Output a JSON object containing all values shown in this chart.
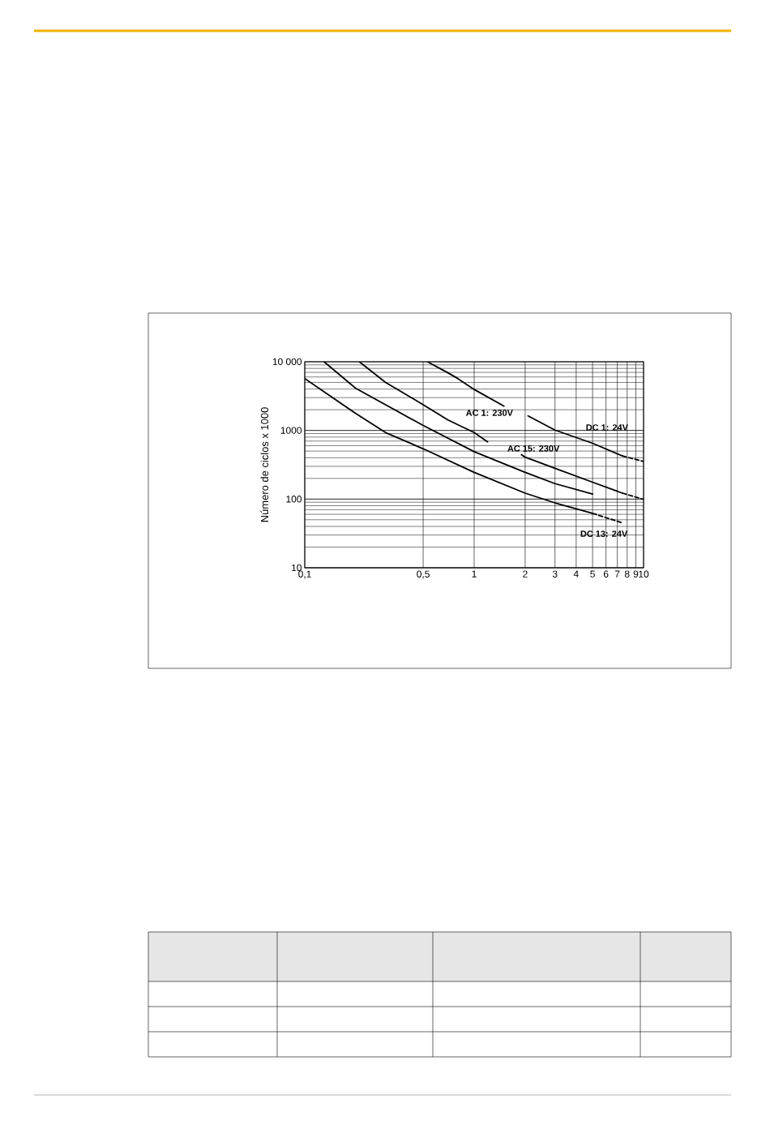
{
  "chart_data": {
    "type": "line",
    "ylabel": "Número de ciclos x 1000",
    "log": "xy",
    "grid": true,
    "marker": "none",
    "xlim": [
      0.1,
      10
    ],
    "ylim": [
      10,
      10000
    ],
    "xticks": [
      {
        "value": 0.1,
        "label": "0,1"
      },
      {
        "value": 0.5,
        "label": "0,5"
      },
      1,
      2,
      3,
      4,
      5,
      6,
      7,
      8,
      9,
      10
    ],
    "yticks": [
      10,
      100,
      1000,
      {
        "value": 10000,
        "label": "10 000"
      }
    ],
    "series": [
      {
        "color": "#000000",
        "line_style": "solid",
        "x": [
          0.1,
          0.2,
          0.3,
          0.5,
          1,
          2,
          3,
          5
        ],
        "values": [
          5700,
          1760,
          930,
          540,
          245,
          122,
          88,
          62
        ]
      },
      {
        "color": "#000000",
        "line_style": "dashed",
        "x": [
          5,
          7.5
        ],
        "values": [
          62,
          45
        ]
      },
      {
        "color": "#000000",
        "line_style": "solid",
        "x": [
          0.13,
          0.2,
          0.5,
          1,
          2,
          3,
          5
        ],
        "values": [
          10000,
          4100,
          1180,
          490,
          245,
          168,
          118
        ]
      },
      {
        "color": "#000000",
        "line_style": "solid",
        "x": [
          0.21,
          0.3,
          0.5,
          0.7,
          1,
          1.2,
          1.5,
          1.9,
          2,
          3,
          5,
          7.5
        ],
        "values": [
          10000,
          5000,
          2370,
          1420,
          930,
          680,
          null,
          445,
          407,
          280,
          176,
          122
        ]
      },
      {
        "color": "#000000",
        "line_style": "dashed",
        "x": [
          7.5,
          10
        ],
        "values": [
          122,
          99
        ]
      },
      {
        "color": "#000000",
        "line_style": "solid",
        "x": [
          0.53,
          0.7,
          0.8,
          1,
          1.5,
          1.75,
          2.08,
          3,
          5,
          7.5
        ],
        "values": [
          10000,
          6900,
          5700,
          3950,
          2260,
          null,
          1630,
          1010,
          650,
          425
        ]
      },
      {
        "color": "#000000",
        "line_style": "dashed",
        "x": [
          7.5,
          10
        ],
        "values": [
          425,
          353
        ]
      }
    ],
    "annotations": [
      "AC 1: 230V",
      "DC 1: 24V",
      "AC 15: 230V",
      "DC 13: 24V"
    ]
  }
}
